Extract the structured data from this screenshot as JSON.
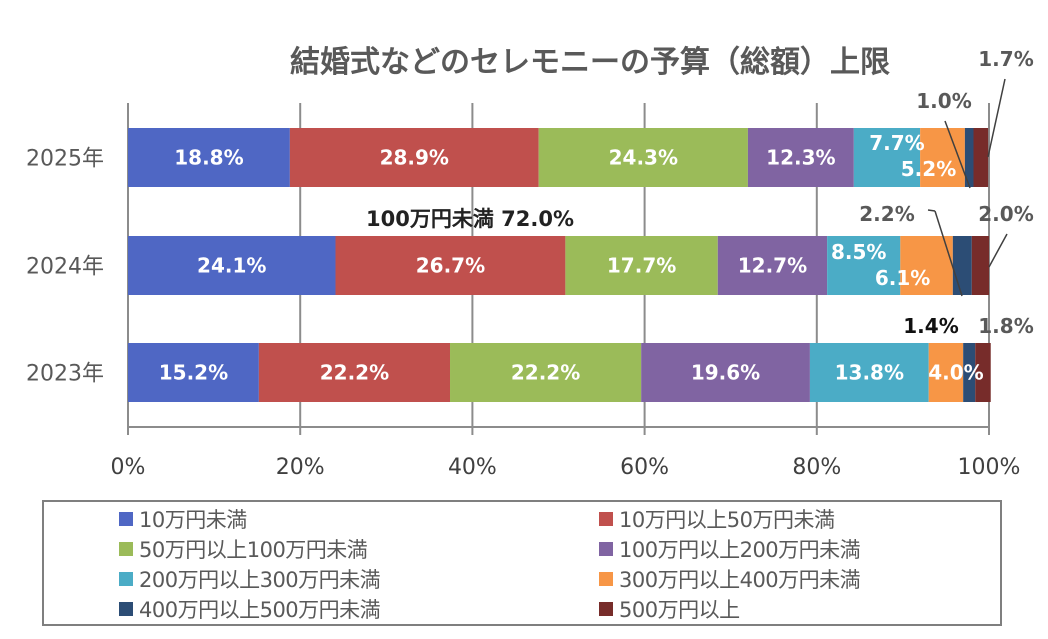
{
  "chart_data": {
    "type": "bar",
    "orientation": "horizontal",
    "stacked": "percent",
    "title": "結婚式などのセレモニーの予算（総額）上限",
    "xlabel": "",
    "ylabel": "",
    "xlim": [
      0,
      100
    ],
    "x_ticks": [
      "0%",
      "20%",
      "40%",
      "60%",
      "80%",
      "100%"
    ],
    "grid": true,
    "legend_position": "bottom",
    "categories": [
      "2025年",
      "2024年",
      "2023年"
    ],
    "series": [
      {
        "name": "10万円未満",
        "color": "#4f67c4",
        "values": [
          18.8,
          24.1,
          15.2
        ],
        "labels": [
          "18.8%",
          "24.1%",
          "15.2%"
        ]
      },
      {
        "name": "10万円以上50万円未満",
        "color": "#c0504d",
        "values": [
          28.9,
          26.7,
          22.2
        ],
        "labels": [
          "28.9%",
          "26.7%",
          "22.2%"
        ]
      },
      {
        "name": "50万円以上100万円未満",
        "color": "#9bbb59",
        "values": [
          24.3,
          17.7,
          22.2
        ],
        "labels": [
          "24.3%",
          "17.7%",
          "22.2%"
        ]
      },
      {
        "name": "100万円以上200万円未満",
        "color": "#8064a2",
        "values": [
          12.3,
          12.7,
          19.6
        ],
        "labels": [
          "12.3%",
          "12.7%",
          "19.6%"
        ]
      },
      {
        "name": "200万円以上300万円未満",
        "color": "#4bacc6",
        "values": [
          7.7,
          8.5,
          13.8
        ],
        "labels": [
          "7.7%",
          "8.5%",
          "13.8%"
        ]
      },
      {
        "name": "300万円以上400万円未満",
        "color": "#f79646",
        "values": [
          5.2,
          6.1,
          4.0
        ],
        "labels": [
          "5.2%",
          "6.1%",
          "4.0%"
        ]
      },
      {
        "name": "400万円以上500万円未満",
        "color": "#2c4d75",
        "values": [
          1.0,
          2.2,
          1.4
        ],
        "labels": [
          "1.0%",
          "2.2%",
          "1.4%"
        ]
      },
      {
        "name": "500万円以上",
        "color": "#772c2a",
        "values": [
          1.7,
          2.0,
          1.8
        ],
        "labels": [
          "1.7%",
          "2.0%",
          "1.8%"
        ]
      }
    ],
    "annotations": [
      {
        "text": "100万円未満 72.0%",
        "category": "2025年"
      }
    ]
  },
  "axis_color": "#8c8c8c"
}
